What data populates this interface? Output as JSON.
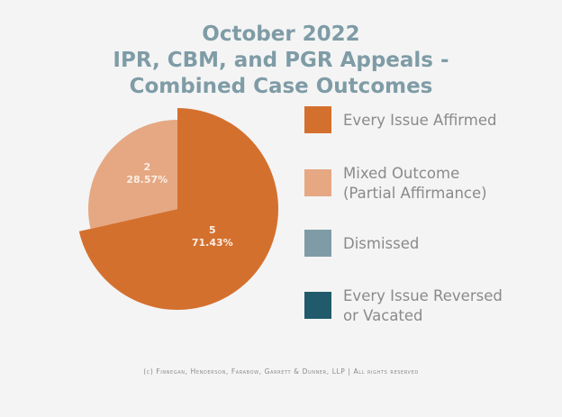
{
  "chart_data": {
    "type": "pie",
    "title_lines": [
      "October 2022",
      "IPR, CBM, and PGR Appeals -",
      "Combined Case Outcomes"
    ],
    "slices": [
      {
        "name": "Every Issue Affirmed",
        "value": 5,
        "percent_label": "71.43%",
        "color": "#d4702e",
        "exploded": true
      },
      {
        "name": "Mixed Outcome (Partial Affirmance)",
        "value": 2,
        "percent_label": "28.57%",
        "color": "#e5a883",
        "exploded": false
      },
      {
        "name": "Dismissed",
        "value": 0,
        "percent_label": "",
        "color": "#7f9ca6",
        "exploded": false
      },
      {
        "name": "Every Issue Reversed or Vacated",
        "value": 0,
        "percent_label": "",
        "color": "#215b6b",
        "exploded": false
      }
    ],
    "legend_position": "right"
  },
  "legend": [
    {
      "lines": [
        "Every Issue Affirmed"
      ]
    },
    {
      "lines": [
        "Mixed Outcome",
        "(Partial Affirmance)"
      ]
    },
    {
      "lines": [
        "Dismissed"
      ]
    },
    {
      "lines": [
        "Every Issue Reversed",
        "or Vacated"
      ]
    }
  ],
  "footer": "(c) Finnegan, Henderson, Farabow, Garrett & Dunner, LLP | All rights reserved"
}
